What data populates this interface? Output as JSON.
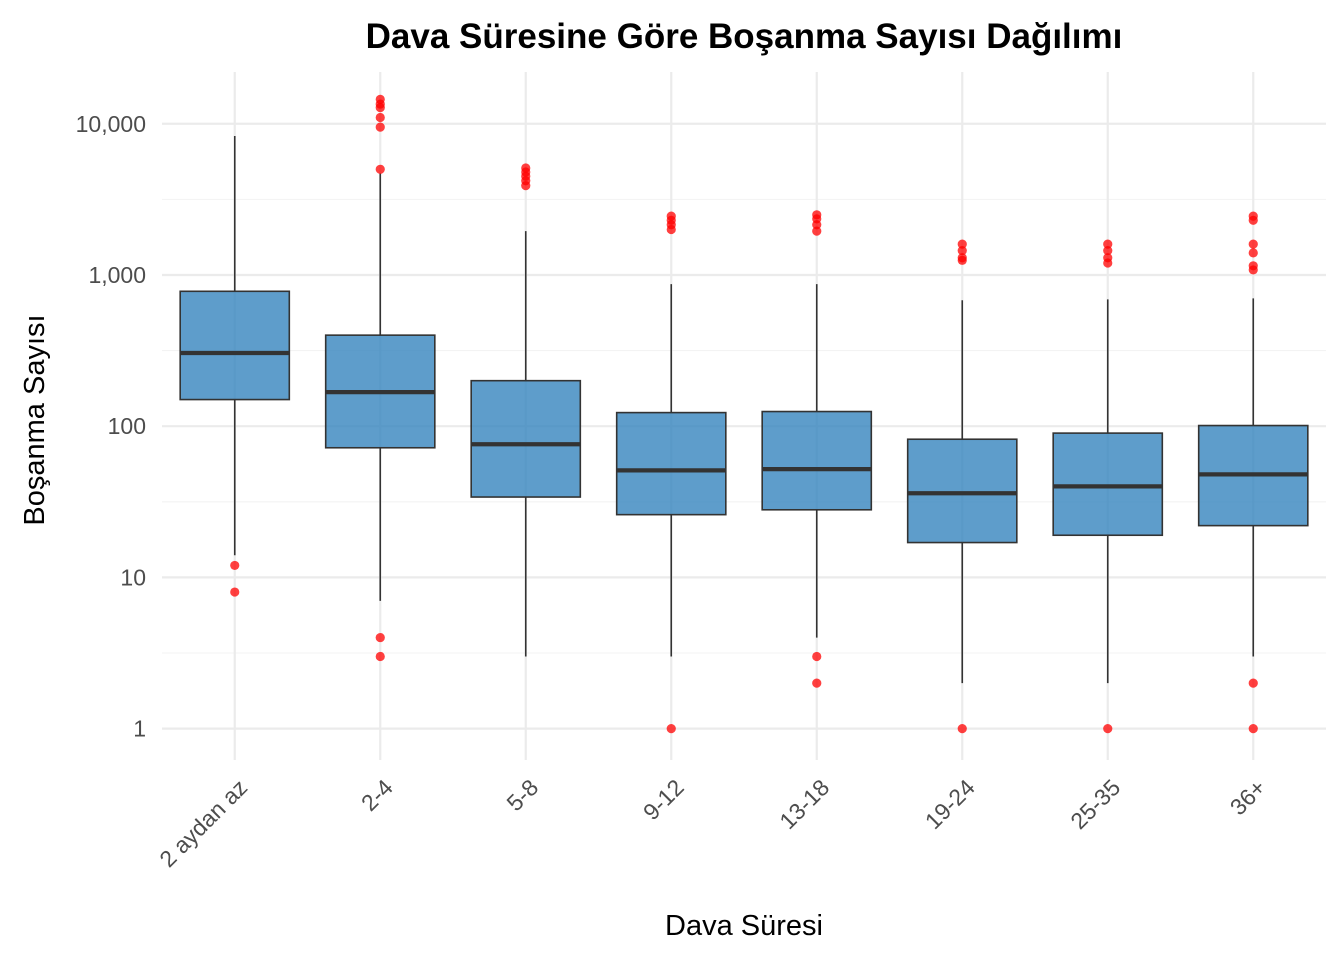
{
  "chart_data": {
    "type": "box",
    "title": "Dava Süresine Göre Boşanma Sayısı Dağılımı",
    "xlabel": "Dava Süresi",
    "ylabel": "Boşanma Sayısı",
    "y_scale": "log10",
    "ylim": [
      0.62,
      22000
    ],
    "y_ticks": [
      1,
      10,
      100,
      1000,
      10000
    ],
    "y_tick_labels": [
      "1",
      "10",
      "100",
      "1,000",
      "10,000"
    ],
    "grid": true,
    "categories": [
      "2 aydan az",
      "2-4",
      "5-8",
      "9-12",
      "13-18",
      "19-24",
      "25-35",
      "36+"
    ],
    "boxes": [
      {
        "category": "2 aydan az",
        "whisker_low": 14,
        "q1": 150,
        "median": 305,
        "q3": 780,
        "whisker_high": 8300,
        "outliers": [
          12,
          8
        ]
      },
      {
        "category": "2-4",
        "whisker_low": 7,
        "q1": 72,
        "median": 168,
        "q3": 400,
        "whisker_high": 4700,
        "outliers": [
          14500,
          13500,
          12800,
          11000,
          9500,
          5000,
          4,
          3
        ]
      },
      {
        "category": "5-8",
        "whisker_low": 3,
        "q1": 34,
        "median": 76,
        "q3": 200,
        "whisker_high": 1950,
        "outliers": [
          5100,
          4800,
          4500,
          4200,
          3900
        ]
      },
      {
        "category": "9-12",
        "whisker_low": 3,
        "q1": 26,
        "median": 51,
        "q3": 123,
        "whisker_high": 870,
        "outliers": [
          2450,
          2300,
          2150,
          2000,
          1
        ]
      },
      {
        "category": "13-18",
        "whisker_low": 4,
        "q1": 28,
        "median": 52,
        "q3": 125,
        "whisker_high": 870,
        "outliers": [
          2500,
          2350,
          2150,
          1950,
          3,
          2
        ]
      },
      {
        "category": "19-24",
        "whisker_low": 2,
        "q1": 17,
        "median": 36,
        "q3": 82,
        "whisker_high": 680,
        "outliers": [
          1600,
          1450,
          1300,
          1250,
          1
        ]
      },
      {
        "category": "25-35",
        "whisker_low": 2,
        "q1": 19,
        "median": 40,
        "q3": 90,
        "whisker_high": 690,
        "outliers": [
          1600,
          1450,
          1300,
          1200,
          1
        ]
      },
      {
        "category": "36+",
        "whisker_low": 3,
        "q1": 22,
        "median": 48,
        "q3": 101,
        "whisker_high": 700,
        "outliers": [
          2450,
          2300,
          1600,
          1400,
          1150,
          1080,
          2,
          1
        ]
      }
    ],
    "colors": {
      "box_fill": "#3182bd",
      "box_fill_opacity": 0.78,
      "outlier": "#ff0000",
      "median": "#333333"
    }
  }
}
